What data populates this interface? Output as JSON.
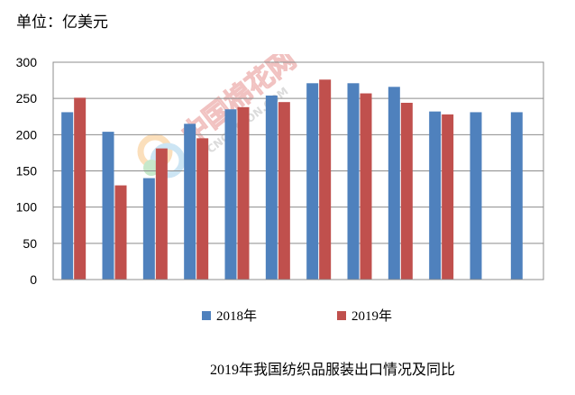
{
  "unit_label": "单位：亿美元",
  "caption": "2019年我国纺织品服装出口情况及同比",
  "watermark": {
    "text": "中国棉花网",
    "sub": "CNCOTTON.COM"
  },
  "colors": {
    "s2018": "#4F81BD",
    "s2019": "#C0504D",
    "grid": "#8c8c8c"
  },
  "chart_data": {
    "type": "bar",
    "title": "",
    "xlabel": "",
    "ylabel": "",
    "ylim": [
      0,
      300
    ],
    "yticks": [
      0,
      50,
      100,
      150,
      200,
      250,
      300
    ],
    "grid": true,
    "legend_position": "bottom",
    "categories": [
      "",
      "",
      "",
      "",
      "",
      "",
      "",
      "",
      "",
      "",
      "",
      ""
    ],
    "series": [
      {
        "name": "2018年",
        "values": [
          231,
          204,
          140,
          215,
          235,
          254,
          271,
          271,
          266,
          232,
          231,
          231
        ]
      },
      {
        "name": "2019年",
        "values": [
          251,
          130,
          181,
          195,
          238,
          245,
          276,
          257,
          244,
          228,
          null,
          null
        ]
      }
    ]
  }
}
